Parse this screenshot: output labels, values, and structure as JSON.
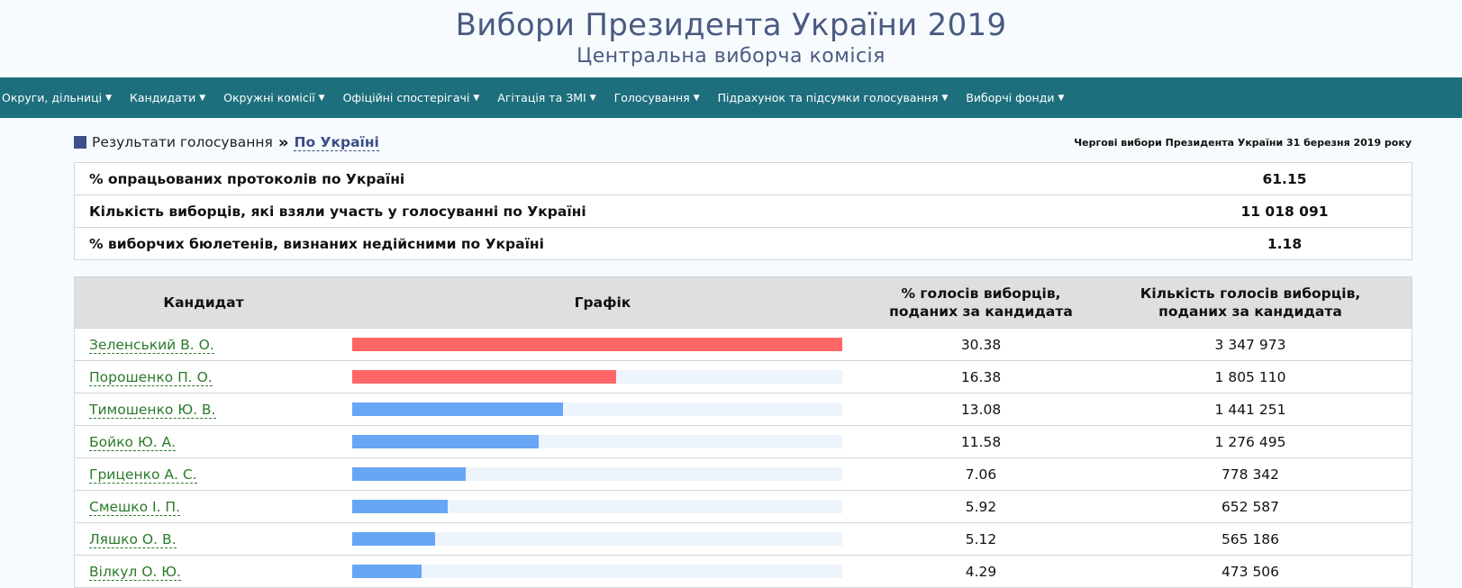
{
  "header": {
    "title": "Вибори Президента України 2019",
    "subtitle": "Центральна виборча комісія"
  },
  "nav": [
    {
      "label": "Округи, дільниці"
    },
    {
      "label": "Кандидати"
    },
    {
      "label": "Окружні комісії"
    },
    {
      "label": "Офіційні спостерігачі"
    },
    {
      "label": "Агітація та ЗМІ"
    },
    {
      "label": "Голосування"
    },
    {
      "label": "Підрахунок та підсумки голосування"
    },
    {
      "label": "Виборчі фонди"
    }
  ],
  "breadcrumb": {
    "root": "Результати голосування",
    "separator": "»",
    "current": "По Україні",
    "election": "Чергові вибори Президента України 31 березня 2019 року"
  },
  "summary": [
    {
      "label": "% опрацьованих протоколів по Україні",
      "value": "61.15"
    },
    {
      "label": "Кількість виборців, які взяли участь у голосуванні по Україні",
      "value": "11 018 091"
    },
    {
      "label": "% виборчих бюлетенів, визнаних недійсними по Україні",
      "value": "1.18"
    }
  ],
  "results": {
    "headers": {
      "candidate": "Кандидат",
      "graph": "Графік",
      "percent_line1": "% голосів виборців,",
      "percent_line2": "поданих за кандидата",
      "count_line1": "Кількість голосів виборців,",
      "count_line2": "поданих за кандидата"
    },
    "colors": {
      "leader": "#ff6666",
      "other": "#66a6f5"
    },
    "rows": [
      {
        "name": "Зеленський В. О.",
        "percent": "30.38",
        "votes": "3 347 973",
        "leader": true
      },
      {
        "name": "Порошенко П. О.",
        "percent": "16.38",
        "votes": "1 805 110",
        "leader": true
      },
      {
        "name": "Тимошенко Ю. В.",
        "percent": "13.08",
        "votes": "1 441 251",
        "leader": false
      },
      {
        "name": "Бойко Ю. А.",
        "percent": "11.58",
        "votes": "1 276 495",
        "leader": false
      },
      {
        "name": "Гриценко А. С.",
        "percent": "7.06",
        "votes": "778 342",
        "leader": false
      },
      {
        "name": "Смешко І. П.",
        "percent": "5.92",
        "votes": "652 587",
        "leader": false
      },
      {
        "name": "Ляшко О. В.",
        "percent": "5.12",
        "votes": "565 186",
        "leader": false
      },
      {
        "name": "Вілкул О. Ю.",
        "percent": "4.29",
        "votes": "473 506",
        "leader": false
      }
    ]
  }
}
